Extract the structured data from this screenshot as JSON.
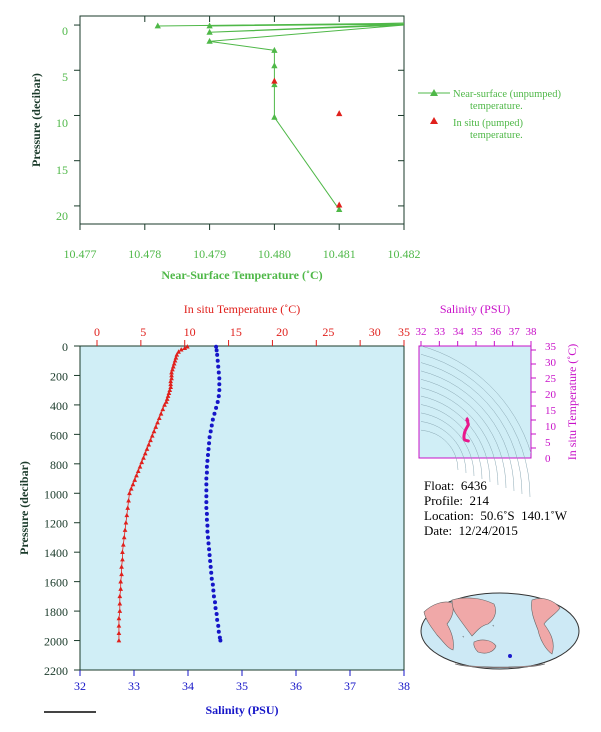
{
  "colors": {
    "green": "#4fb848",
    "red": "#e0201c",
    "blue": "#1515c8",
    "magenta": "#c810c8",
    "panel_fill": "#d0eef6",
    "axis_dark": "#1a3a2a",
    "land": "#f0a8a8",
    "ocean": "#cde9f5",
    "float_marker": "#1a1acc"
  },
  "top_chart": {
    "xlabel": "Near-Surface Temperature (˚C)",
    "ylabel": "Pressure (decibar)",
    "x_ticks": [
      "10.477",
      "10.478",
      "10.479",
      "10.480",
      "10.481",
      "10.482"
    ],
    "y_ticks": [
      "0",
      "5",
      "10",
      "15",
      "20"
    ],
    "legend": {
      "unpumped": "Near-surface (unpumped) temperature.",
      "unpumped_l1": "Near-surface (unpumped)",
      "unpumped_l2": "temperature.",
      "pumped": "In situ (pumped) temperature.",
      "pumped_l1": "In situ (pumped)",
      "pumped_l2": "temperature."
    }
  },
  "main_chart": {
    "top_xlabel": "In situ Temperature (˚C)",
    "bottom_xlabel": "Salinity (PSU)",
    "ylabel": "Pressure (decibar)",
    "temp_ticks": [
      "0",
      "5",
      "10",
      "15",
      "20",
      "25",
      "30",
      "35"
    ],
    "sal_ticks": [
      "32",
      "33",
      "34",
      "35",
      "36",
      "37",
      "38"
    ],
    "p_ticks": [
      "0",
      "200",
      "400",
      "600",
      "800",
      "1000",
      "1200",
      "1400",
      "1600",
      "1800",
      "2000",
      "2200"
    ]
  },
  "ts_chart": {
    "top_xlabel": "Salinity (PSU)",
    "right_ylabel": "In situ Temperature (˚C)",
    "sal_ticks": [
      "32",
      "33",
      "34",
      "35",
      "36",
      "37",
      "38"
    ],
    "temp_ticks": [
      "0",
      "5",
      "10",
      "15",
      "20",
      "25",
      "30",
      "35"
    ]
  },
  "info": {
    "float_label": "Float:",
    "float_value": "6436",
    "profile_label": "Profile:",
    "profile_value": "214",
    "location_label": "Location:",
    "location_value": "50.6˚S  140.1˚W",
    "date_label": "Date:",
    "date_value": "12/24/2015"
  },
  "chart_data": [
    {
      "type": "line",
      "title": "",
      "xlabel": "Near-Surface Temperature (˚C)",
      "ylabel": "Pressure (decibar)",
      "xlim": [
        10.477,
        10.482
      ],
      "ylim": [
        22,
        -1
      ],
      "series": [
        {
          "name": "Near-surface (unpumped) temperature.",
          "points": [
            [
              10.4782,
              0.1
            ],
            [
              10.482,
              -0.2
            ],
            [
              10.479,
              0.1
            ],
            [
              10.482,
              -0.1
            ],
            [
              10.479,
              0.8
            ],
            [
              10.482,
              0.0
            ],
            [
              10.479,
              1.8
            ],
            [
              10.48,
              2.8
            ],
            [
              10.48,
              4.5
            ],
            [
              10.48,
              6.6
            ],
            [
              10.48,
              10.2
            ],
            [
              10.481,
              20.4
            ]
          ]
        },
        {
          "name": "In situ (pumped) temperature.",
          "points": [
            [
              10.48,
              6.2
            ],
            [
              10.481,
              9.8
            ],
            [
              10.481,
              19.9
            ]
          ]
        }
      ]
    },
    {
      "type": "scatter",
      "title": "",
      "ylabel": "Pressure (decibar)",
      "ylim": [
        2200,
        0
      ],
      "series": [
        {
          "name": "In situ Temperature (˚C)",
          "xlim": [
            0,
            35
          ],
          "points": [
            [
              10.3,
              5
            ],
            [
              10.0,
              15
            ],
            [
              9.6,
              25
            ],
            [
              9.3,
              40
            ],
            [
              9.1,
              60
            ],
            [
              9.0,
              80
            ],
            [
              8.9,
              100
            ],
            [
              8.8,
              120
            ],
            [
              8.7,
              140
            ],
            [
              8.6,
              160
            ],
            [
              8.5,
              180
            ],
            [
              8.5,
              200
            ],
            [
              8.5,
              220
            ],
            [
              8.4,
              240
            ],
            [
              8.4,
              260
            ],
            [
              8.4,
              280
            ],
            [
              8.3,
              300
            ],
            [
              8.2,
              320
            ],
            [
              8.1,
              340
            ],
            [
              8.0,
              360
            ],
            [
              7.9,
              380
            ],
            [
              7.7,
              400
            ],
            [
              7.5,
              430
            ],
            [
              7.3,
              460
            ],
            [
              7.1,
              490
            ],
            [
              6.9,
              520
            ],
            [
              6.7,
              550
            ],
            [
              6.5,
              580
            ],
            [
              6.3,
              610
            ],
            [
              6.1,
              640
            ],
            [
              5.9,
              670
            ],
            [
              5.7,
              700
            ],
            [
              5.5,
              730
            ],
            [
              5.3,
              760
            ],
            [
              5.1,
              790
            ],
            [
              4.9,
              820
            ],
            [
              4.7,
              850
            ],
            [
              4.5,
              880
            ],
            [
              4.3,
              910
            ],
            [
              4.1,
              940
            ],
            [
              3.9,
              970
            ],
            [
              3.7,
              1000
            ],
            [
              3.6,
              1050
            ],
            [
              3.5,
              1100
            ],
            [
              3.4,
              1150
            ],
            [
              3.3,
              1200
            ],
            [
              3.2,
              1250
            ],
            [
              3.1,
              1300
            ],
            [
              3.0,
              1350
            ],
            [
              2.9,
              1400
            ],
            [
              2.9,
              1450
            ],
            [
              2.8,
              1500
            ],
            [
              2.8,
              1550
            ],
            [
              2.7,
              1600
            ],
            [
              2.7,
              1650
            ],
            [
              2.6,
              1700
            ],
            [
              2.6,
              1750
            ],
            [
              2.6,
              1800
            ],
            [
              2.5,
              1850
            ],
            [
              2.5,
              1900
            ],
            [
              2.5,
              1950
            ],
            [
              2.5,
              2000
            ]
          ]
        },
        {
          "name": "Salinity (PSU)",
          "xlim": [
            32,
            38
          ],
          "points": [
            [
              34.52,
              5
            ],
            [
              34.53,
              30
            ],
            [
              34.54,
              60
            ],
            [
              34.55,
              100
            ],
            [
              34.56,
              140
            ],
            [
              34.57,
              180
            ],
            [
              34.58,
              220
            ],
            [
              34.58,
              260
            ],
            [
              34.58,
              300
            ],
            [
              34.57,
              340
            ],
            [
              34.55,
              380
            ],
            [
              34.52,
              420
            ],
            [
              34.49,
              460
            ],
            [
              34.46,
              500
            ],
            [
              34.44,
              540
            ],
            [
              34.42,
              580
            ],
            [
              34.4,
              620
            ],
            [
              34.39,
              660
            ],
            [
              34.38,
              700
            ],
            [
              34.37,
              740
            ],
            [
              34.36,
              780
            ],
            [
              34.35,
              820
            ],
            [
              34.35,
              860
            ],
            [
              34.34,
              900
            ],
            [
              34.34,
              940
            ],
            [
              34.34,
              980
            ],
            [
              34.34,
              1020
            ],
            [
              34.34,
              1060
            ],
            [
              34.34,
              1100
            ],
            [
              34.35,
              1140
            ],
            [
              34.35,
              1180
            ],
            [
              34.36,
              1220
            ],
            [
              34.36,
              1260
            ],
            [
              34.37,
              1300
            ],
            [
              34.38,
              1340
            ],
            [
              34.39,
              1380
            ],
            [
              34.4,
              1420
            ],
            [
              34.41,
              1460
            ],
            [
              34.42,
              1500
            ],
            [
              34.43,
              1540
            ],
            [
              34.44,
              1580
            ],
            [
              34.46,
              1620
            ],
            [
              34.47,
              1660
            ],
            [
              34.48,
              1700
            ],
            [
              34.5,
              1740
            ],
            [
              34.51,
              1780
            ],
            [
              34.53,
              1820
            ],
            [
              34.54,
              1860
            ],
            [
              34.56,
              1900
            ],
            [
              34.57,
              1940
            ],
            [
              34.59,
              1980
            ],
            [
              34.6,
              2000
            ]
          ]
        }
      ]
    },
    {
      "type": "scatter",
      "title": "",
      "xlabel": "Salinity (PSU)",
      "ylabel": "In situ Temperature (˚C)",
      "xlim": [
        32,
        38
      ],
      "ylim": [
        0,
        35
      ],
      "series": [
        {
          "name": "T-S profile",
          "points": [
            [
              34.52,
              10.3
            ],
            [
              34.53,
              9.8
            ],
            [
              34.55,
              9.3
            ],
            [
              34.56,
              8.9
            ],
            [
              34.58,
              8.5
            ],
            [
              34.58,
              8.3
            ],
            [
              34.55,
              7.9
            ],
            [
              34.5,
              7.3
            ],
            [
              34.45,
              6.7
            ],
            [
              34.4,
              6.0
            ],
            [
              34.37,
              5.3
            ],
            [
              34.35,
              4.6
            ],
            [
              34.34,
              3.9
            ],
            [
              34.35,
              3.4
            ],
            [
              34.37,
              3.0
            ],
            [
              34.41,
              2.8
            ],
            [
              34.46,
              2.7
            ],
            [
              34.52,
              2.6
            ],
            [
              34.58,
              2.5
            ]
          ]
        }
      ]
    }
  ]
}
